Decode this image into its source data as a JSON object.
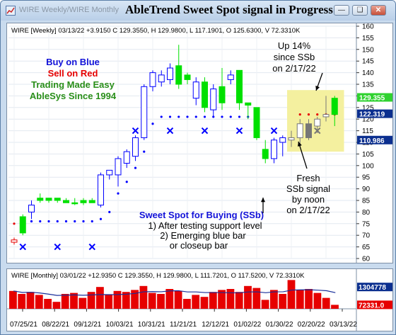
{
  "window": {
    "subtitle": "WIRE Weekly/WIRE Monthly",
    "title": "AbleTrend Sweet Spot signal in Progress",
    "buttons": [
      "minimize-button",
      "restore-button",
      "close-button"
    ]
  },
  "weekly": {
    "header": "WIRE [Weekly] 03/13/22 +3.9150 C 129.3550, H 129.9800, L 117.1901, O 125.6300, V 72.3310K",
    "axis_ticks": [
      "160",
      "155",
      "150",
      "145",
      "140",
      "135",
      "130",
      "125",
      "120",
      "115",
      "110",
      "105",
      "100",
      "95",
      "90",
      "85",
      "80",
      "75",
      "70",
      "65",
      "60"
    ],
    "price_labels": [
      {
        "text": "129.355",
        "value": 129.355,
        "color": "#2fd22f"
      },
      {
        "text": "122.319",
        "value": 122.319,
        "color": "#0b2f8f"
      },
      {
        "text": "110.986",
        "value": 110.986,
        "color": "#0b2f8f"
      }
    ],
    "annotations": {
      "buy": "Buy on Blue",
      "sell": "Sell on Red",
      "easy": "Trading Made Easy",
      "since": "AbleSys Since 1994",
      "up1": "Up 14%",
      "up2": "since SSb",
      "up3": "on 2/17/22",
      "f1": "Fresh",
      "f2": "SSb signal",
      "f3": "by noon",
      "f4": "on 2/17/22",
      "s1": "Sweet Spot for Buying (SSb)",
      "s2": "1) After testing support level",
      "s3": "2) Emerging blue bar",
      "s4": "or closeup bar"
    },
    "colors": {
      "blue": "#0000ff",
      "red": "#e60000",
      "green": "#00e000",
      "highlight": "#f3ef9a"
    }
  },
  "monthly": {
    "header": "WIRE [Monthly] 03/01/22 +12.9350 C 129.3550, H 129.9800, L 111.7201, O 117.5200, V 72.3310K",
    "axis_ticks": [
      "1304778"
    ],
    "volume_labels": [
      {
        "text": "1304778",
        "color": "#0b2f8f"
      },
      {
        "text": "72331.0",
        "color": "#e60000"
      }
    ],
    "date_ticks": [
      "07/25/21",
      "08/22/21",
      "09/12/21",
      "10/03/21",
      "10/31/21",
      "11/21/21",
      "12/12/21",
      "01/02/22",
      "01/30/22",
      "02/20/22",
      "03/13/22"
    ]
  },
  "chart_data": [
    {
      "type": "candlestick",
      "series": "WIRE Weekly",
      "ylim": [
        60,
        160
      ],
      "bars": [
        {
          "o": 67,
          "h": 69,
          "l": 66,
          "c": 68,
          "color": "red"
        },
        {
          "o": 71,
          "h": 79,
          "l": 70,
          "c": 78,
          "color": "green"
        },
        {
          "o": 80,
          "h": 85,
          "l": 77,
          "c": 83,
          "color": "blue"
        },
        {
          "o": 85,
          "h": 88,
          "l": 84,
          "c": 86,
          "color": "green"
        },
        {
          "o": 85,
          "h": 86,
          "l": 84,
          "c": 86,
          "color": "green"
        },
        {
          "o": 85,
          "h": 86,
          "l": 84,
          "c": 86,
          "color": "green"
        },
        {
          "o": 85,
          "h": 86,
          "l": 84,
          "c": 84,
          "color": "green"
        },
        {
          "o": 84,
          "h": 86,
          "l": 83,
          "c": 84,
          "color": "green"
        },
        {
          "o": 84,
          "h": 86,
          "l": 83,
          "c": 85,
          "color": "green"
        },
        {
          "o": 85,
          "h": 86,
          "l": 84,
          "c": 84,
          "color": "green"
        },
        {
          "o": 83,
          "h": 97,
          "l": 82,
          "c": 96,
          "color": "blue"
        },
        {
          "o": 96,
          "h": 98,
          "l": 94,
          "c": 98,
          "color": "blue"
        },
        {
          "o": 96,
          "h": 104,
          "l": 91,
          "c": 103,
          "color": "blue"
        },
        {
          "o": 101,
          "h": 107,
          "l": 99,
          "c": 106,
          "color": "blue"
        },
        {
          "o": 104,
          "h": 113,
          "l": 102,
          "c": 112,
          "color": "blue"
        },
        {
          "o": 112,
          "h": 135,
          "l": 111,
          "c": 134,
          "color": "blue"
        },
        {
          "o": 134,
          "h": 141,
          "l": 132,
          "c": 140,
          "color": "blue"
        },
        {
          "o": 136,
          "h": 141,
          "l": 134,
          "c": 139,
          "color": "blue"
        },
        {
          "o": 137,
          "h": 144,
          "l": 135,
          "c": 142,
          "color": "blue"
        },
        {
          "o": 143,
          "h": 152,
          "l": 133,
          "c": 135,
          "color": "green"
        },
        {
          "o": 139,
          "h": 140,
          "l": 135,
          "c": 137,
          "color": "green"
        },
        {
          "o": 129,
          "h": 138,
          "l": 126,
          "c": 136,
          "color": "blue"
        },
        {
          "o": 136,
          "h": 138,
          "l": 123,
          "c": 125,
          "color": "green"
        },
        {
          "o": 124,
          "h": 135,
          "l": 121,
          "c": 133,
          "color": "blue"
        },
        {
          "o": 134,
          "h": 142,
          "l": 124,
          "c": 127,
          "color": "green"
        },
        {
          "o": 137,
          "h": 141,
          "l": 135,
          "c": 139,
          "color": "blue"
        },
        {
          "o": 141,
          "h": 141,
          "l": 124,
          "c": 127,
          "color": "green"
        },
        {
          "o": 127,
          "h": 127,
          "l": 120,
          "c": 126,
          "color": "green"
        },
        {
          "o": 125,
          "h": 125,
          "l": 111,
          "c": 112,
          "color": "green"
        },
        {
          "o": 107,
          "h": 111,
          "l": 101,
          "c": 103,
          "color": "green"
        },
        {
          "o": 103,
          "h": 112,
          "l": 101,
          "c": 111,
          "color": "blue"
        },
        {
          "o": 110,
          "h": 113,
          "l": 104,
          "c": 112,
          "color": "blue"
        },
        {
          "o": 111,
          "h": 115,
          "l": 108,
          "c": 112,
          "color": "gray"
        },
        {
          "o": 112,
          "h": 120,
          "l": 108,
          "c": 118,
          "color": "gray"
        },
        {
          "o": 118,
          "h": 120,
          "l": 111,
          "c": 112,
          "color": "gray"
        },
        {
          "o": 117,
          "h": 121,
          "l": 114,
          "c": 120,
          "color": "gray"
        },
        {
          "o": 121,
          "h": 130,
          "l": 119,
          "c": 122,
          "color": "gray"
        },
        {
          "o": 122,
          "h": 130,
          "l": 117,
          "c": 129,
          "color": "green"
        }
      ],
      "support_dots": [
        {
          "i": 0,
          "v": 75,
          "color": "red"
        },
        {
          "i": 1,
          "v": 75,
          "color": "red"
        },
        {
          "i": 2,
          "v": 76,
          "color": "blue"
        },
        {
          "i": 3,
          "v": 76,
          "color": "blue"
        },
        {
          "i": 4,
          "v": 76,
          "color": "blue"
        },
        {
          "i": 5,
          "v": 76,
          "color": "blue"
        },
        {
          "i": 6,
          "v": 76,
          "color": "blue"
        },
        {
          "i": 7,
          "v": 76,
          "color": "blue"
        },
        {
          "i": 8,
          "v": 76,
          "color": "blue"
        },
        {
          "i": 9,
          "v": 76,
          "color": "blue"
        },
        {
          "i": 10,
          "v": 77,
          "color": "blue"
        },
        {
          "i": 11,
          "v": 80,
          "color": "blue"
        },
        {
          "i": 12,
          "v": 88,
          "color": "blue"
        },
        {
          "i": 13,
          "v": 93,
          "color": "blue"
        },
        {
          "i": 14,
          "v": 99,
          "color": "blue"
        },
        {
          "i": 15,
          "v": 106,
          "color": "blue"
        },
        {
          "i": 16,
          "v": 118,
          "color": "blue"
        },
        {
          "i": 17,
          "v": 121,
          "color": "blue"
        },
        {
          "i": 18,
          "v": 121,
          "color": "blue"
        },
        {
          "i": 19,
          "v": 121,
          "color": "blue"
        },
        {
          "i": 20,
          "v": 121,
          "color": "blue"
        },
        {
          "i": 21,
          "v": 121,
          "color": "blue"
        },
        {
          "i": 22,
          "v": 121,
          "color": "blue"
        },
        {
          "i": 23,
          "v": 121,
          "color": "blue"
        },
        {
          "i": 24,
          "v": 121,
          "color": "blue"
        },
        {
          "i": 25,
          "v": 121,
          "color": "blue"
        },
        {
          "i": 26,
          "v": 121,
          "color": "blue"
        },
        {
          "i": 27,
          "v": 121,
          "color": "blue"
        },
        {
          "i": 33,
          "v": 122,
          "color": "red"
        },
        {
          "i": 34,
          "v": 122,
          "color": "red"
        },
        {
          "i": 35,
          "v": 122,
          "color": "red"
        },
        {
          "i": 36,
          "v": 122,
          "color": "red"
        },
        {
          "i": 37,
          "v": 122,
          "color": "red"
        }
      ],
      "x_markers": [
        {
          "i": 1,
          "v": 65,
          "color": "blue"
        },
        {
          "i": 5,
          "v": 65,
          "color": "blue"
        },
        {
          "i": 9,
          "v": 65,
          "color": "blue"
        },
        {
          "i": 14,
          "v": 115,
          "color": "blue"
        },
        {
          "i": 18,
          "v": 115,
          "color": "blue"
        },
        {
          "i": 22,
          "v": 115,
          "color": "blue"
        },
        {
          "i": 26,
          "v": 115,
          "color": "blue"
        },
        {
          "i": 30,
          "v": 115,
          "color": "blue"
        },
        {
          "i": 35,
          "v": 115,
          "color": "gray"
        }
      ]
    },
    {
      "type": "bar",
      "series": "WIRE Monthly",
      "values": [
        0.9,
        0.75,
        0.85,
        0.7,
        0.5,
        0.35,
        0.75,
        0.8,
        0.55,
        0.85,
        1.1,
        0.7,
        0.9,
        0.85,
        0.95,
        1.15,
        0.8,
        0.75,
        1.0,
        0.9,
        0.5,
        0.7,
        0.6,
        0.85,
        0.95,
        1.0,
        0.85,
        1.15,
        1.05,
        0.45,
        0.95,
        0.75,
        1.45,
        0.95,
        1.0,
        0.8,
        0.55,
        0.2
      ],
      "colors": [
        "red",
        "red",
        "red",
        "red",
        "red",
        "red",
        "red",
        "red",
        "red",
        "red",
        "red",
        "red",
        "red",
        "red",
        "red",
        "red",
        "red",
        "red",
        "red",
        "red",
        "red",
        "red",
        "red",
        "red",
        "red",
        "red",
        "red",
        "red",
        "red",
        "red",
        "red",
        "red",
        "red",
        "red",
        "red",
        "red",
        "red",
        "red"
      ]
    }
  ]
}
